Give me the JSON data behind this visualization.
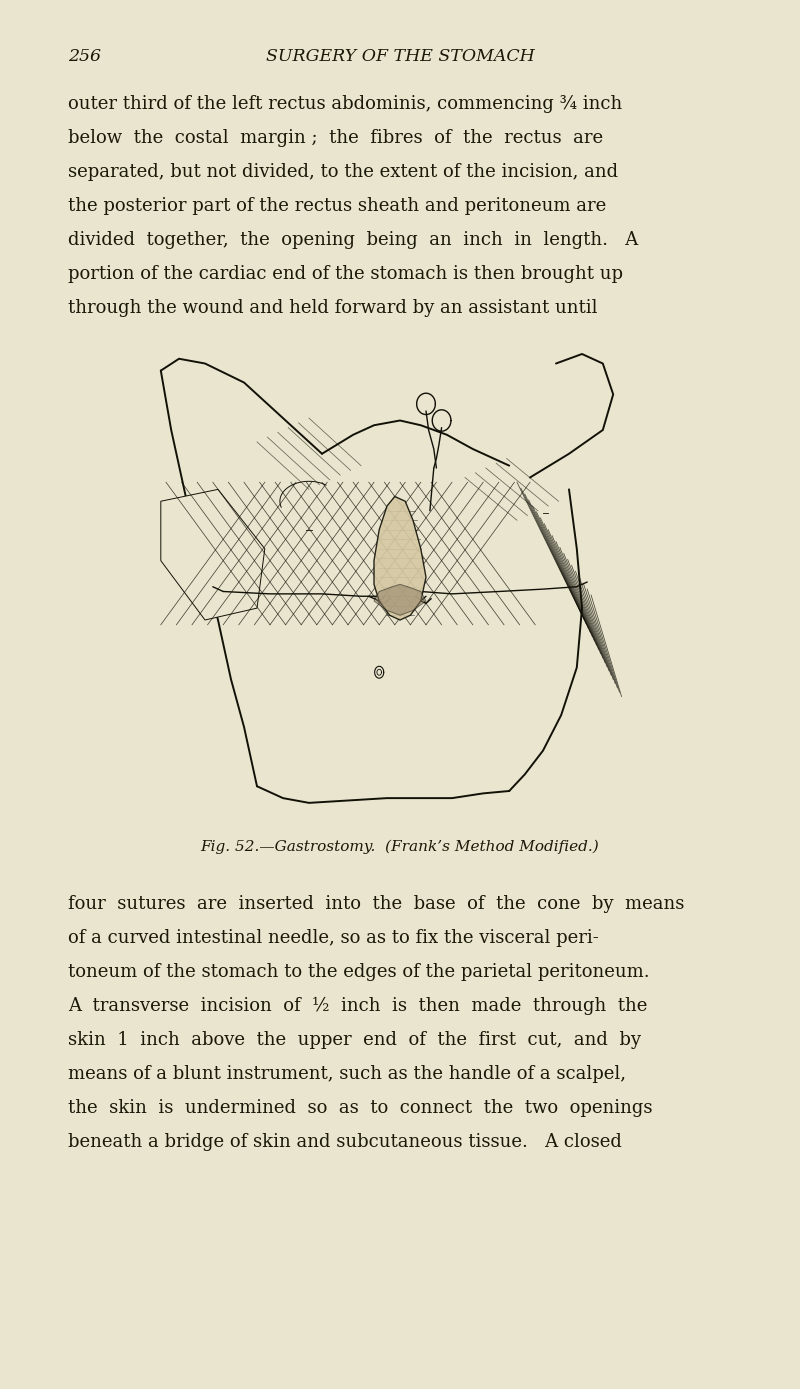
{
  "background_color": "#EAE5CE",
  "page_number": "256",
  "header_title": "SURGERY OF THE STOMACH",
  "top_text_lines": [
    "outer third of the left rectus abdominis, commencing ¾ inch",
    "below  the  costal  margin ;  the  fibres  of  the  rectus  are",
    "separated, but not divided, to the extent of the incision, and",
    "the posterior part of the rectus sheath and peritoneum are",
    "divided  together,  the  opening  being  an  inch  in  length.   A",
    "portion of the cardiac end of the stomach is then brought up",
    "through the wound and held forward by an assistant until"
  ],
  "caption": "Fig. 52.—Gastrostomy.  (Frank’s Method Modified.)",
  "bottom_text_lines": [
    "four  sutures  are  inserted  into  the  base  of  the  cone  by  means",
    "of a curved intestinal needle, so as to fix the visceral peri-",
    "toneum of the stomach to the edges of the parietal peritoneum.",
    "A  transverse  incision  of  ½  inch  is  then  made  through  the",
    "skin  1  inch  above  the  upper  end  of  the  first  cut,  and  by",
    "means of a blunt instrument, such as the handle of a scalpel,",
    "the  skin  is  undermined  so  as  to  connect  the  two  openings",
    "beneath a bridge of skin and subcutaneous tissue.   A closed"
  ],
  "text_color": "#1a1808",
  "lc": "#111108",
  "text_fontsize": 13.0,
  "header_fontsize": 12.5,
  "caption_fontsize": 11.0
}
